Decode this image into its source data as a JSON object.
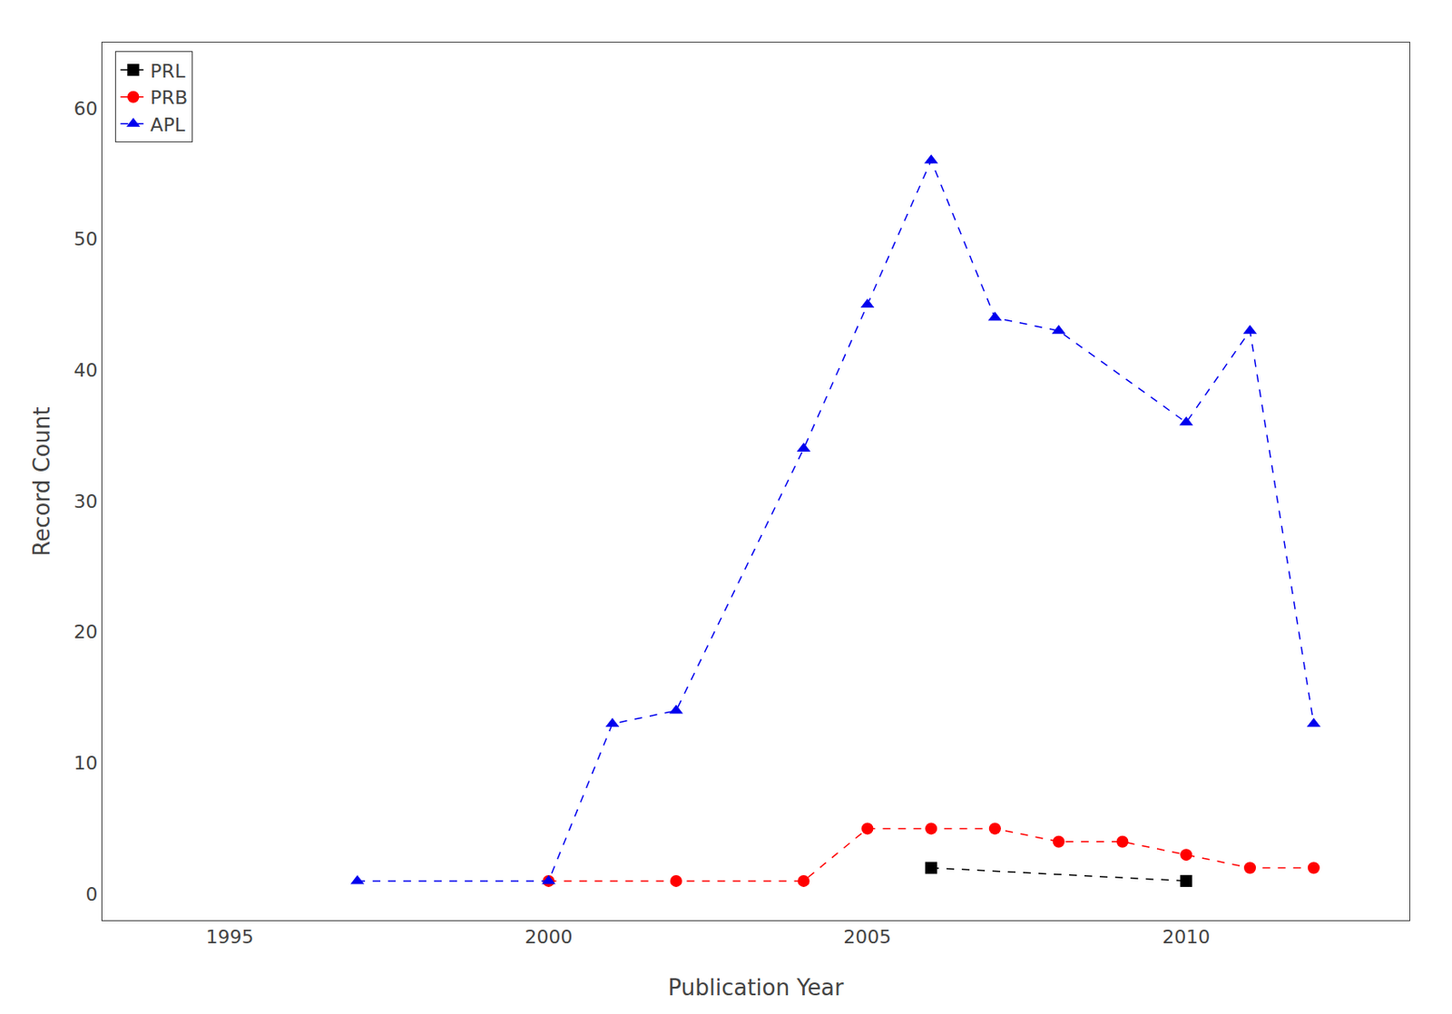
{
  "chart_data": {
    "type": "line",
    "xlabel": "Publication Year",
    "ylabel": "Record Count",
    "series": [
      {
        "name": "PRL",
        "color": "#000000",
        "marker": "square",
        "line_style": "dashed",
        "x": [
          2006,
          2010
        ],
        "values": [
          2,
          1
        ]
      },
      {
        "name": "PRB",
        "color": "#ff0000",
        "marker": "circle",
        "line_style": "dashed",
        "x": [
          2000,
          2002,
          2004,
          2005,
          2006,
          2007,
          2008,
          2009,
          2010,
          2011,
          2012
        ],
        "values": [
          1,
          1,
          1,
          5,
          5,
          5,
          4,
          4,
          3,
          2,
          2
        ]
      },
      {
        "name": "APL",
        "color": "#0000ee",
        "marker": "triangle-up",
        "line_style": "dashed",
        "x": [
          1997,
          2000,
          2001,
          2002,
          2004,
          2005,
          2006,
          2007,
          2008,
          2010,
          2011,
          2012
        ],
        "values": [
          1,
          1,
          13,
          14,
          34,
          45,
          56,
          44,
          43,
          36,
          43,
          13
        ]
      }
    ],
    "xlim": [
      1993,
      2013.5
    ],
    "ylim": [
      -2,
      65
    ],
    "xticks": [
      1995,
      2000,
      2005,
      2010
    ],
    "yticks": [
      0,
      10,
      20,
      30,
      40,
      50,
      60
    ],
    "grid": false,
    "legend": "upper left"
  }
}
